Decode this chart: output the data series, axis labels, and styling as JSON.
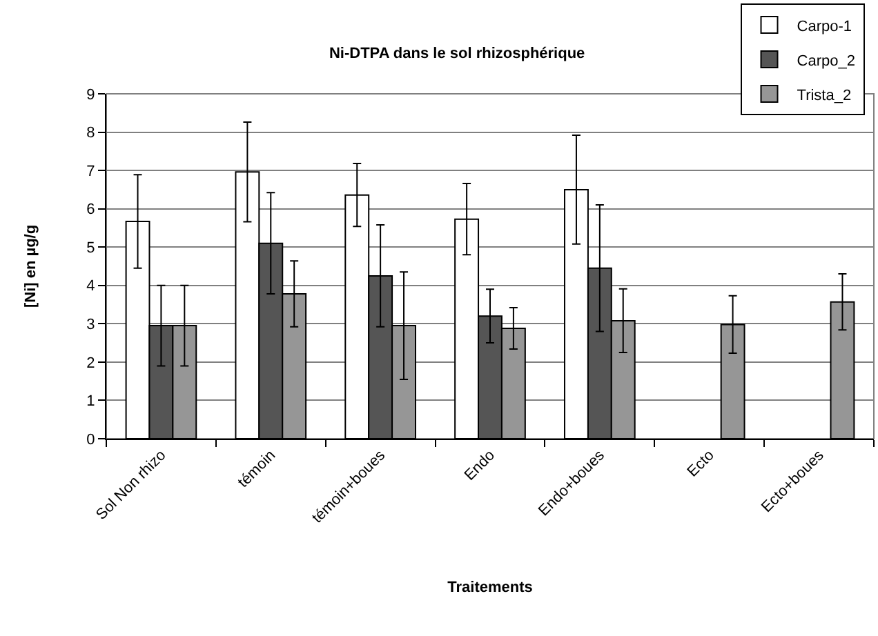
{
  "chart_data": {
    "type": "bar",
    "title": "Ni-DTPA dans le sol rhizosphérique",
    "xlabel": "Traitements",
    "ylabel": "[Ni] en µg/g",
    "categories": [
      "Sol Non rhizo",
      "témoin",
      "témoin+boues",
      "Endo",
      "Endo+boues",
      "Ecto",
      "Ecto+boues"
    ],
    "series": [
      {
        "name": "Carpo-1",
        "color": "#ffffff",
        "values": [
          5.67,
          6.96,
          6.36,
          5.73,
          6.5,
          null,
          null
        ],
        "errors": [
          1.22,
          1.3,
          0.82,
          0.93,
          1.42,
          null,
          null
        ]
      },
      {
        "name": "Carpo_2",
        "color": "#555555",
        "values": [
          2.95,
          5.1,
          4.25,
          3.2,
          4.45,
          null,
          null
        ],
        "errors": [
          1.05,
          1.32,
          1.33,
          0.7,
          1.65,
          null,
          null
        ]
      },
      {
        "name": "Trista_2",
        "color": "#969696",
        "values": [
          2.95,
          3.78,
          2.95,
          2.88,
          3.08,
          2.98,
          3.57
        ],
        "errors": [
          1.05,
          0.86,
          1.4,
          0.54,
          0.83,
          0.75,
          0.73
        ]
      }
    ],
    "ylim": [
      0,
      9
    ],
    "yticks": [
      0,
      1,
      2,
      3,
      4,
      5,
      6,
      7,
      8,
      9
    ],
    "grid": "y",
    "legend": "top right"
  }
}
